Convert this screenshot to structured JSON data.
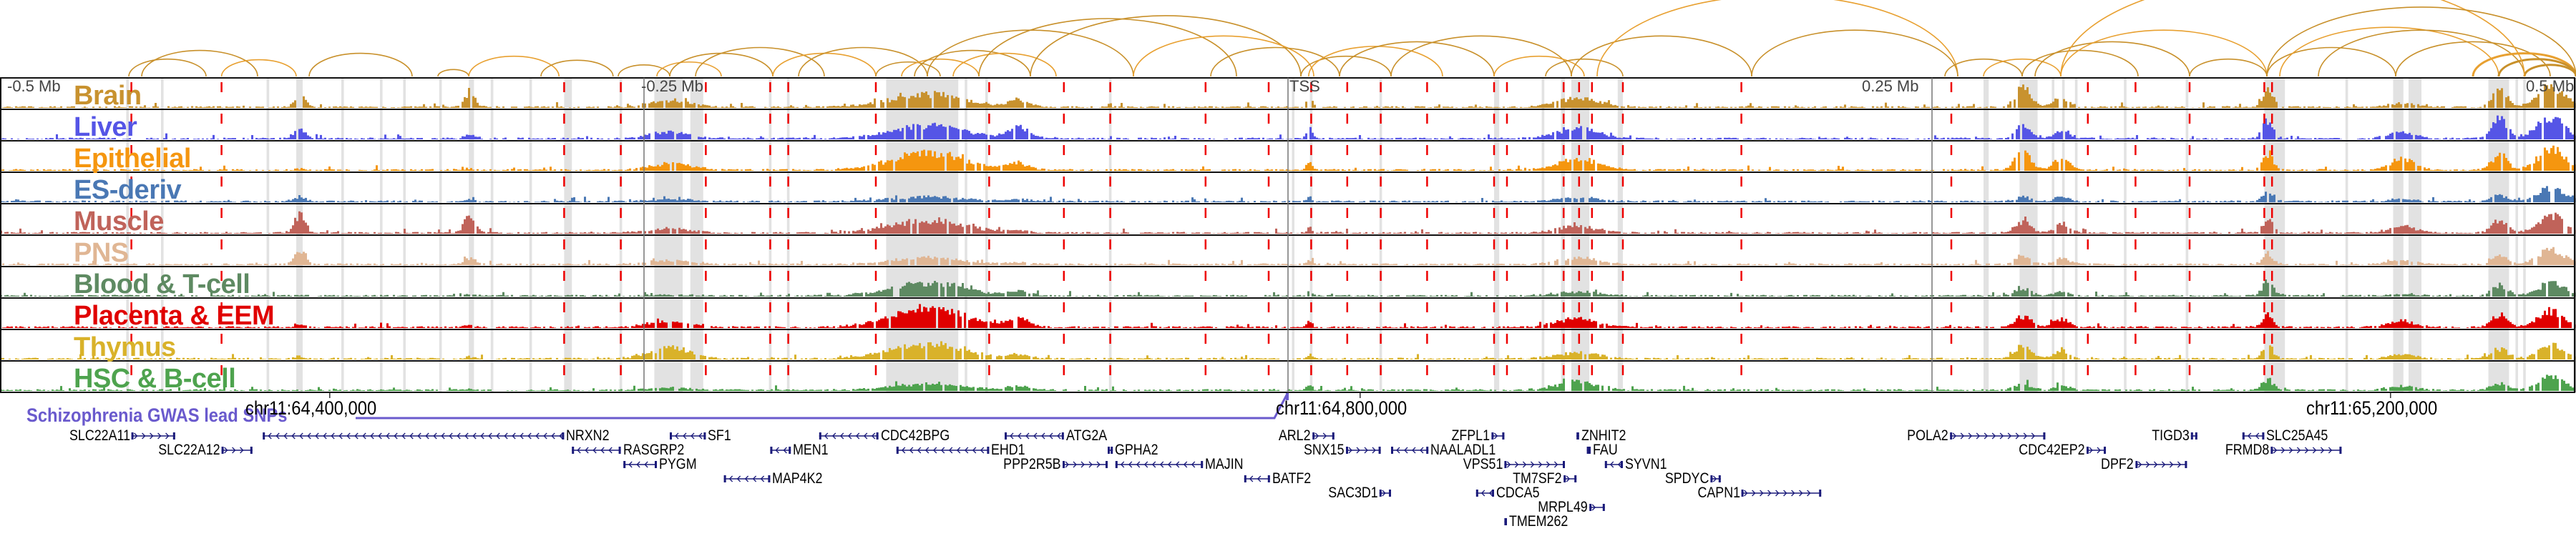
{
  "axis": {
    "left_label": "-0.5 Mb",
    "tick_labels": [
      {
        "kb": -250,
        "label": "-0.25 Mb"
      },
      {
        "kb": 0,
        "label": "TSS"
      },
      {
        "kb": 250,
        "label": "0.25 Mb"
      },
      {
        "kb": 500,
        "label": "0.5 Mb"
      }
    ]
  },
  "chr_ticks": [
    {
      "kb": -372,
      "label": "chr11:64,400,000"
    },
    {
      "kb": 28,
      "label": "chr11:64,800,000"
    },
    {
      "kb": 428,
      "label": "chr11:65,200,000"
    }
  ],
  "gwas_track": {
    "label": "Schizophrenia GWAS lead SNPs",
    "color": "#6a5acd"
  },
  "tracks": [
    {
      "label": "Brain",
      "color": "#c8922f"
    },
    {
      "label": "Liver",
      "color": "#5555e6"
    },
    {
      "label": "Epithelial",
      "color": "#f5960f"
    },
    {
      "label": "ES-deriv",
      "color": "#4a78b4"
    },
    {
      "label": "Muscle",
      "color": "#c0635a"
    },
    {
      "label": "PNS",
      "color": "#e0b694"
    },
    {
      "label": "Blood & T-cell",
      "color": "#5e8a62"
    },
    {
      "label": "Placenta & EEM",
      "color": "#e00000"
    },
    {
      "label": "Thymus",
      "color": "#d9b22a"
    },
    {
      "label": "HSC & B-cell",
      "color": "#4ea34e"
    }
  ],
  "hotspots": [
    {
      "kb": -384,
      "w": 2,
      "gains": [
        0.6,
        0.4,
        0.05,
        0.2,
        0.9,
        0.7,
        0.02,
        0.1,
        0.1,
        0.02
      ]
    },
    {
      "kb": -318,
      "w": 2,
      "gains": [
        0.7,
        0.2,
        0.05,
        0.1,
        0.9,
        0.3,
        0.05,
        0.1,
        0.1,
        0.05
      ]
    },
    {
      "kb": -240,
      "w": 8,
      "gains": [
        0.3,
        0.3,
        0.3,
        0.1,
        0.2,
        0.2,
        0.05,
        0.3,
        0.5,
        0.1
      ]
    },
    {
      "kb": -140,
      "w": 14,
      "gains": [
        0.6,
        0.6,
        0.8,
        0.2,
        0.6,
        0.3,
        0.6,
        0.9,
        0.7,
        0.3
      ]
    },
    {
      "kb": -105,
      "w": 4,
      "gains": [
        0.3,
        0.5,
        0.3,
        0.1,
        0.1,
        0.1,
        0.2,
        0.4,
        0.2,
        0.2
      ]
    },
    {
      "kb": 8,
      "w": 1,
      "gains": [
        0.6,
        0.6,
        0.4,
        0.2,
        0.3,
        0.2,
        0.2,
        0.3,
        0.2,
        0.3
      ]
    },
    {
      "kb": 112,
      "w": 8,
      "gains": [
        0.4,
        0.5,
        0.5,
        0.2,
        0.3,
        0.3,
        0.2,
        0.4,
        0.3,
        0.4
      ]
    },
    {
      "kb": 285,
      "w": 3,
      "gains": [
        0.9,
        0.6,
        0.8,
        0.2,
        0.5,
        0.4,
        0.3,
        0.5,
        0.6,
        0.3
      ]
    },
    {
      "kb": 300,
      "w": 3,
      "gains": [
        0.5,
        0.4,
        0.6,
        0.2,
        0.4,
        0.3,
        0.2,
        0.4,
        0.4,
        0.2
      ]
    },
    {
      "kb": 380,
      "w": 2,
      "gains": [
        0.8,
        0.9,
        0.7,
        0.5,
        0.6,
        0.5,
        0.8,
        0.6,
        0.6,
        0.5
      ]
    },
    {
      "kb": 432,
      "w": 5,
      "gains": [
        0.2,
        0.3,
        0.5,
        0.1,
        0.3,
        0.2,
        0.1,
        0.3,
        0.2,
        0.2
      ]
    },
    {
      "kb": 470,
      "w": 3,
      "gains": [
        0.8,
        0.9,
        0.7,
        0.3,
        0.6,
        0.4,
        0.5,
        0.6,
        0.5,
        0.3
      ]
    },
    {
      "kb": 490,
      "w": 5,
      "gains": [
        1,
        1,
        1,
        0.6,
        0.8,
        0.7,
        0.6,
        0.8,
        0.6,
        0.6
      ]
    }
  ],
  "highlight_bands_kb": [
    [
      -451,
      -450
    ],
    [
      -437.5,
      -436.5
    ],
    [
      -396.5,
      -395.5
    ],
    [
      -385,
      -382.5
    ],
    [
      -367.5,
      -366.5
    ],
    [
      -352.5,
      -351.5
    ],
    [
      -343.5,
      -342.5
    ],
    [
      -329.5,
      -328.5
    ],
    [
      -318,
      -316
    ],
    [
      -309.5,
      -308.5
    ],
    [
      -294.5,
      -293.5
    ],
    [
      -281,
      -278
    ],
    [
      -259.5,
      -258.5
    ],
    [
      -246,
      -235
    ],
    [
      -232,
      -227
    ],
    [
      -201.5,
      -200.5
    ],
    [
      -194.5,
      -193.5
    ],
    [
      -156,
      -128
    ],
    [
      -125.5,
      -124.5
    ],
    [
      -117.5,
      -116.5
    ],
    [
      -69.5,
      -68.5
    ],
    [
      1.5,
      2.5
    ],
    [
      8.5,
      9.5
    ],
    [
      35.5,
      36.5
    ],
    [
      80,
      82
    ],
    [
      98.5,
      99.5
    ],
    [
      106,
      107.5
    ],
    [
      110,
      117
    ],
    [
      128,
      130
    ],
    [
      270,
      272
    ],
    [
      284,
      291
    ],
    [
      296.5,
      297.5
    ],
    [
      300.5,
      301.5
    ],
    [
      305.5,
      306.5
    ],
    [
      324.5,
      325.5
    ],
    [
      348.5,
      349.5
    ],
    [
      379,
      387
    ],
    [
      410.5,
      411.5
    ],
    [
      429,
      433
    ],
    [
      435,
      440
    ],
    [
      466,
      474
    ],
    [
      476.5,
      477.5
    ],
    [
      479.5,
      480.5
    ]
  ],
  "lead_snps_kb": [
    -449,
    -414,
    -281,
    -259,
    -226,
    -201,
    -194,
    -160,
    -116,
    -87,
    -69,
    -32,
    -7.5,
    9,
    23,
    36,
    54,
    80,
    85,
    107,
    113,
    118,
    130,
    176,
    257.5,
    310.5,
    329,
    350,
    379,
    382
  ],
  "loops_kb": [
    [
      -450,
      -420
    ],
    [
      -445,
      -400
    ],
    [
      -414,
      -385
    ],
    [
      -380,
      -340
    ],
    [
      -330,
      -318
    ],
    [
      -318,
      -283
    ],
    [
      -290,
      -262
    ],
    [
      -260,
      -240
    ],
    [
      -245,
      -220
    ],
    [
      -240,
      -200
    ],
    [
      -230,
      -180
    ],
    [
      -200,
      -160
    ],
    [
      -190,
      -140
    ],
    [
      -160,
      -135
    ],
    [
      -150,
      -120
    ],
    [
      -145,
      -100
    ],
    [
      -140,
      -60
    ],
    [
      -130,
      -90
    ],
    [
      -120,
      -20
    ],
    [
      -100,
      5
    ],
    [
      -60,
      10
    ],
    [
      -30,
      20
    ],
    [
      5,
      40
    ],
    [
      8,
      60
    ],
    [
      20,
      80
    ],
    [
      40,
      110
    ],
    [
      80,
      115
    ],
    [
      100,
      130
    ],
    [
      110,
      180
    ],
    [
      120,
      260
    ],
    [
      180,
      260
    ],
    [
      255,
      285
    ],
    [
      270,
      300
    ],
    [
      285,
      330
    ],
    [
      290,
      350
    ],
    [
      300,
      380
    ],
    [
      350,
      380
    ],
    [
      380,
      430
    ],
    [
      385,
      470
    ],
    [
      400,
      480
    ],
    [
      430,
      490
    ],
    [
      460,
      500
    ],
    [
      470,
      500
    ],
    [
      480,
      500
    ],
    [
      300,
      480
    ],
    [
      380,
      500
    ]
  ],
  "genes": [
    {
      "name": "SLC22A11",
      "s": -449,
      "e": -432,
      "row": 1,
      "strand": "+",
      "side": "left"
    },
    {
      "name": "SLC22A12",
      "s": -414,
      "e": -402,
      "row": 2,
      "strand": "+",
      "side": "left"
    },
    {
      "name": "NRXN2",
      "s": -398,
      "e": -281,
      "row": 1,
      "strand": "-",
      "side": "right"
    },
    {
      "name": "SF1",
      "s": -240,
      "e": -226,
      "row": 1,
      "strand": "-",
      "side": "right"
    },
    {
      "name": "RASGRP2",
      "s": -278,
      "e": -259,
      "row": 2,
      "strand": "-",
      "side": "right"
    },
    {
      "name": "PYGM",
      "s": -258,
      "e": -245,
      "row": 3,
      "strand": "-",
      "side": "right"
    },
    {
      "name": "MEN1",
      "s": -201,
      "e": -193,
      "row": 2,
      "strand": "-",
      "side": "right"
    },
    {
      "name": "MAP4K2",
      "s": -219,
      "e": -201,
      "row": 4,
      "strand": "-",
      "side": "right"
    },
    {
      "name": "CDC42BPG",
      "s": -182,
      "e": -159,
      "row": 1,
      "strand": "-",
      "side": "right"
    },
    {
      "name": "ATG2A",
      "s": -110,
      "e": -87,
      "row": 1,
      "strand": "-",
      "side": "right"
    },
    {
      "name": "EHD1",
      "s": -152,
      "e": -116,
      "row": 2,
      "strand": "-",
      "side": "right"
    },
    {
      "name": "GPHA2",
      "s": -70,
      "e": -68,
      "row": 2,
      "strand": "-",
      "side": "right"
    },
    {
      "name": "PPP2R5B",
      "s": -87.5,
      "e": -70,
      "row": 3,
      "strand": "+",
      "side": "left"
    },
    {
      "name": "MAJIN",
      "s": -67,
      "e": -33,
      "row": 3,
      "strand": "-",
      "side": "right"
    },
    {
      "name": "BATF2",
      "s": -17,
      "e": -7,
      "row": 4,
      "strand": "-",
      "side": "right"
    },
    {
      "name": "SAC3D1",
      "s": 35.5,
      "e": 40,
      "row": 5,
      "strand": "+",
      "side": "left"
    },
    {
      "name": "ARL2",
      "s": 9.5,
      "e": 18,
      "row": 1,
      "strand": "+",
      "side": "left"
    },
    {
      "name": "SNX15",
      "s": 22.5,
      "e": 36,
      "row": 2,
      "strand": "+",
      "side": "left"
    },
    {
      "name": "ZFPL1",
      "s": 79,
      "e": 84,
      "row": 1,
      "strand": "+",
      "side": "left"
    },
    {
      "name": "NAALADL1",
      "s": 40,
      "e": 54.5,
      "row": 2,
      "strand": "-",
      "side": "right"
    },
    {
      "name": "VPS51",
      "s": 84,
      "e": 107.5,
      "row": 3,
      "strand": "+",
      "side": "left"
    },
    {
      "name": "TM7SF2",
      "s": 107,
      "e": 112,
      "row": 4,
      "strand": "+",
      "side": "left"
    },
    {
      "name": "CDCA5",
      "s": 73,
      "e": 80,
      "row": 5,
      "strand": "-",
      "side": "right"
    },
    {
      "name": "MRPL49",
      "s": 117,
      "e": 123,
      "row": 6,
      "strand": "+",
      "side": "left"
    },
    {
      "name": "TMEM262",
      "s": 84,
      "e": 85,
      "row": 7,
      "strand": "+",
      "side": "right"
    },
    {
      "name": "ZNHIT2",
      "s": 112,
      "e": 113,
      "row": 1,
      "strand": "+",
      "side": "right"
    },
    {
      "name": "FAU",
      "s": 116,
      "e": 117.5,
      "row": 2,
      "strand": "-",
      "side": "right"
    },
    {
      "name": "SYVN1",
      "s": 123,
      "e": 130,
      "row": 3,
      "strand": "-",
      "side": "right"
    },
    {
      "name": "SPDYC",
      "s": 164,
      "e": 168,
      "row": 4,
      "strand": "+",
      "side": "left"
    },
    {
      "name": "CAPN1",
      "s": 176,
      "e": 207,
      "row": 5,
      "strand": "+",
      "side": "left"
    },
    {
      "name": "POLA2",
      "s": 257,
      "e": 294,
      "row": 1,
      "strand": "+",
      "side": "left"
    },
    {
      "name": "CDC42EP2",
      "s": 310,
      "e": 317.5,
      "row": 2,
      "strand": "+",
      "side": "left"
    },
    {
      "name": "DPF2",
      "s": 329,
      "e": 349,
      "row": 3,
      "strand": "+",
      "side": "left"
    },
    {
      "name": "TIGD3",
      "s": 350.5,
      "e": 353,
      "row": 1,
      "strand": "+",
      "side": "left"
    },
    {
      "name": "SLC25A45",
      "s": 370.5,
      "e": 379,
      "row": 1,
      "strand": "-",
      "side": "right"
    },
    {
      "name": "FRMD8",
      "s": 381.5,
      "e": 409,
      "row": 2,
      "strand": "+",
      "side": "left"
    }
  ],
  "colors": {
    "loop": "#c8902a",
    "loop_alt": "#e8a030",
    "snp_line": "#ee0000",
    "band": "#e2e2e2",
    "gene": "#1a1a7a"
  }
}
